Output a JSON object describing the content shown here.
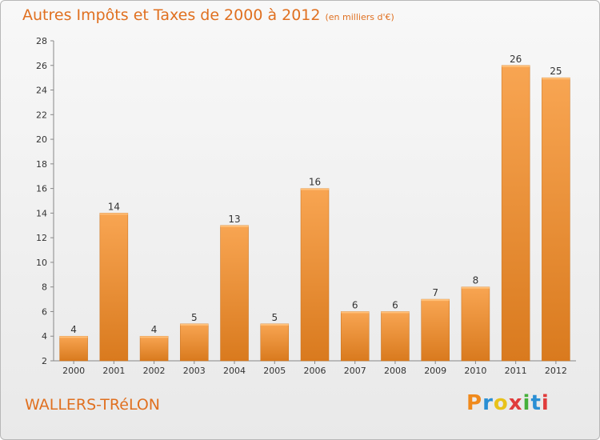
{
  "header": {
    "title": "Autres Impôts et Taxes de 2000 à 2012",
    "subtitle": "(en milliers d'€)"
  },
  "footer": {
    "city": "WALLERS-TRéLON",
    "logo_text": "Proxiti"
  },
  "colors": {
    "bar_light": "#f8a552",
    "bar_dark": "#d97a1e",
    "text_accent": "#e07020"
  },
  "chart_data": {
    "type": "bar",
    "categories": [
      "2000",
      "2001",
      "2002",
      "2003",
      "2004",
      "2005",
      "2006",
      "2007",
      "2008",
      "2009",
      "2010",
      "2011",
      "2012"
    ],
    "values": [
      4,
      14,
      4,
      5,
      13,
      5,
      16,
      6,
      6,
      7,
      8,
      26,
      25
    ],
    "title": "Autres Impôts et Taxes de 2000 à 2012",
    "subtitle": "(en milliers d'€)",
    "xlabel": "",
    "ylabel": "",
    "ylim": [
      2,
      28
    ],
    "yticks": [
      2,
      4,
      6,
      8,
      10,
      12,
      14,
      16,
      18,
      20,
      22,
      24,
      26,
      28
    ],
    "grid": false,
    "data_labels": true
  }
}
